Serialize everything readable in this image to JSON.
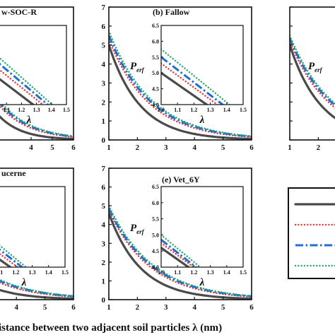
{
  "figure": {
    "x_axis_label": "istance between two adjacent soil particles λ (nm)"
  },
  "legend": {
    "entries": [
      {
        "style": "solid",
        "color": "#4a4a4a"
      },
      {
        "style": "dotted",
        "color": "#e23a3a"
      },
      {
        "style": "dashdot",
        "color": "#1f6fd0"
      },
      {
        "style": "dotted",
        "color": "#2aa86a"
      }
    ]
  },
  "chart_data": [
    {
      "panel": "a",
      "title": "w-SOC-R",
      "type": "line",
      "xlim": [
        1,
        6
      ],
      "ylim": [
        0,
        7
      ],
      "xticks": [
        4,
        5,
        6
      ],
      "yticks": [],
      "inset": {
        "xlabel": "λ",
        "xlim": [
          1.0,
          1.5
        ],
        "ylim": [
          4.0,
          6.5
        ],
        "xticks": [
          "1.1",
          "1.2",
          "1.3",
          "1.4",
          "1.5"
        ],
        "yticks": [],
        "series_y_at_1": [
          5.0,
          5.3,
          5.5,
          5.7
        ]
      },
      "series_y_at_1": [
        5.0,
        5.3,
        5.5,
        5.7
      ],
      "series_y_at_6": [
        0.05,
        0.15,
        0.18,
        0.2
      ]
    },
    {
      "panel": "b",
      "title": "(b) Fallow",
      "type": "line",
      "xlim": [
        1,
        6
      ],
      "ylim": [
        0,
        7
      ],
      "xticks": [
        "1",
        "2",
        "3",
        "4",
        "5",
        "6"
      ],
      "yticks": [
        "0",
        "1",
        "2",
        "3",
        "4",
        "5",
        "6",
        "7"
      ],
      "ylabel": "P",
      "ylabel_sub": "erf",
      "inset": {
        "xlabel": "λ",
        "xlim": [
          1.0,
          1.5
        ],
        "ylim": [
          4.0,
          6.5
        ],
        "xticks": [
          "1.0",
          "1.1",
          "1.2",
          "1.3",
          "1.4",
          "1.5"
        ],
        "yticks": [
          "4.0",
          "4.5",
          "5.0",
          "5.5",
          "6.0",
          "6.5"
        ],
        "series_y_at_1": [
          5.0,
          5.3,
          5.5,
          5.75
        ]
      },
      "series_y_at_1": [
        5.0,
        5.3,
        5.5,
        5.75
      ],
      "series_y_at_6": [
        0.05,
        0.15,
        0.18,
        0.2
      ]
    },
    {
      "panel": "c",
      "title": "",
      "type": "line",
      "xlim": [
        1,
        6
      ],
      "ylim": [
        0,
        7
      ],
      "xticks": [
        "1",
        "2"
      ],
      "yticks": [],
      "ylabel": "P",
      "ylabel_sub": "erf",
      "inset": {
        "xlim": [
          1.0,
          1.5
        ],
        "ylim": [
          4.0,
          6.5
        ],
        "yticks": [
          "6.",
          "5.",
          "5.",
          "4.",
          "4."
        ],
        "series_y_at_1": [
          5.0,
          5.2,
          5.35,
          5.5
        ]
      },
      "series_y_at_1": [
        5.0,
        5.2,
        5.35,
        5.5
      ],
      "series_y_at_6": [
        0.05,
        0.15,
        0.18,
        0.2
      ]
    },
    {
      "panel": "d",
      "title": "ucerne",
      "type": "line",
      "xlim": [
        1,
        6
      ],
      "ylim": [
        0,
        7
      ],
      "xticks": [
        "4",
        "5",
        "6"
      ],
      "yticks": [],
      "inset": {
        "xlabel": "λ",
        "xlim": [
          1.0,
          1.5
        ],
        "ylim": [
          4.0,
          6.5
        ],
        "xticks": [
          "1.1",
          "1.2",
          "1.3",
          "1.4",
          "1.5"
        ],
        "yticks": [],
        "series_y_at_1": [
          4.6,
          4.8,
          4.95,
          5.1
        ]
      },
      "series_y_at_1": [
        4.6,
        4.8,
        4.95,
        5.1
      ],
      "series_y_at_6": [
        0.05,
        0.15,
        0.18,
        0.2
      ]
    },
    {
      "panel": "e",
      "title": "(e) Vet_6Y",
      "type": "line",
      "xlim": [
        1,
        6
      ],
      "ylim": [
        0,
        7
      ],
      "xticks": [
        "1",
        "2",
        "3",
        "4",
        "5",
        "6"
      ],
      "yticks": [
        "0",
        "1",
        "2",
        "3",
        "4",
        "5",
        "6",
        "7"
      ],
      "ylabel": "P",
      "ylabel_sub": "erf",
      "inset": {
        "xlabel": "λ",
        "xlim": [
          1.0,
          1.5
        ],
        "ylim": [
          4.0,
          6.5
        ],
        "xticks": [
          "1.0",
          "1.1",
          "1.2",
          "1.3",
          "1.4",
          "1.5"
        ],
        "yticks": [
          "4.0",
          "4.5",
          "5.0",
          "5.5",
          "6.0",
          "6.5"
        ],
        "series_y_at_1": [
          4.6,
          4.75,
          4.85,
          5.0
        ]
      },
      "series_y_at_1": [
        4.6,
        4.75,
        4.85,
        5.0
      ],
      "series_y_at_6": [
        0.05,
        0.15,
        0.18,
        0.2
      ]
    }
  ]
}
